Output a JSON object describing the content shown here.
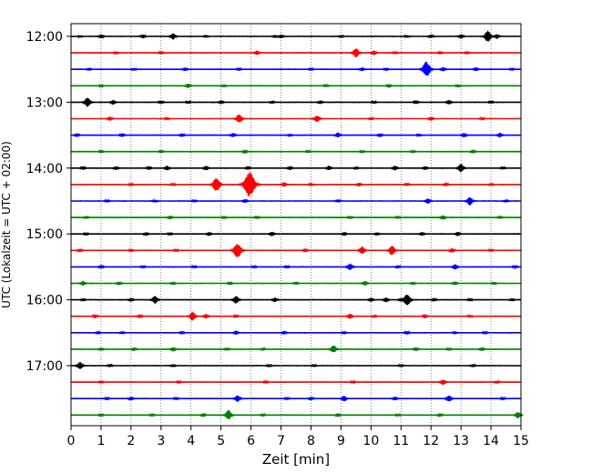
{
  "chart_data": {
    "type": "line",
    "title": "",
    "xlabel": "Zeit  [min]",
    "ylabel": "UTC (Lokalzeit = UTC + 02:00)",
    "xlim": [
      0,
      15
    ],
    "x_ticks": [
      "0",
      "1",
      "2",
      "3",
      "4",
      "5",
      "6",
      "7",
      "8",
      "9",
      "10",
      "11",
      "12",
      "13",
      "14",
      "15"
    ],
    "y_ticks": [
      "12:00",
      "13:00",
      "14:00",
      "15:00",
      "16:00",
      "17:00"
    ],
    "grid": "vertical dotted",
    "trace_interval_min": 15,
    "trace_colors": [
      "#000000",
      "#ff0000",
      "#0000ff",
      "#008000"
    ],
    "series": [
      {
        "start": "12:00",
        "events": [
          [
            0.3,
            0.12
          ],
          [
            1.0,
            0.3
          ],
          [
            2.4,
            0.25
          ],
          [
            3.4,
            0.4
          ],
          [
            4.5,
            0.2
          ],
          [
            6.8,
            0.2
          ],
          [
            7.0,
            0.25
          ],
          [
            9.0,
            0.2
          ],
          [
            11.2,
            0.2
          ],
          [
            12.0,
            0.25
          ],
          [
            13.0,
            0.3
          ],
          [
            13.9,
            0.7
          ],
          [
            14.2,
            0.3
          ]
        ]
      },
      {
        "start": "12:15",
        "events": [
          [
            1.5,
            0.2
          ],
          [
            3.0,
            0.2
          ],
          [
            6.2,
            0.3
          ],
          [
            9.5,
            0.6
          ],
          [
            10.1,
            0.3
          ],
          [
            10.8,
            0.2
          ],
          [
            12.3,
            0.2
          ],
          [
            13.2,
            0.2
          ]
        ]
      },
      {
        "start": "12:30",
        "events": [
          [
            0.6,
            0.2
          ],
          [
            2.1,
            0.2
          ],
          [
            3.8,
            0.25
          ],
          [
            5.6,
            0.2
          ],
          [
            8.0,
            0.2
          ],
          [
            9.7,
            0.25
          ],
          [
            10.5,
            0.2
          ],
          [
            11.85,
            0.95
          ],
          [
            12.4,
            0.3
          ],
          [
            13.5,
            0.25
          ],
          [
            14.7,
            0.2
          ]
        ]
      },
      {
        "start": "12:45",
        "events": [
          [
            1.0,
            0.15
          ],
          [
            3.9,
            0.3
          ],
          [
            5.1,
            0.2
          ],
          [
            8.5,
            0.2
          ],
          [
            10.6,
            0.25
          ],
          [
            12.9,
            0.2
          ]
        ]
      },
      {
        "start": "13:00",
        "events": [
          [
            0.55,
            0.6
          ],
          [
            1.4,
            0.3
          ],
          [
            3.0,
            0.25
          ],
          [
            3.9,
            0.2
          ],
          [
            5.0,
            0.25
          ],
          [
            6.7,
            0.2
          ],
          [
            8.3,
            0.25
          ],
          [
            10.1,
            0.2
          ],
          [
            11.5,
            0.25
          ],
          [
            12.6,
            0.3
          ],
          [
            14.0,
            0.2
          ]
        ]
      },
      {
        "start": "13:15",
        "events": [
          [
            1.3,
            0.3
          ],
          [
            3.2,
            0.2
          ],
          [
            5.6,
            0.55
          ],
          [
            8.2,
            0.45
          ],
          [
            10.0,
            0.2
          ],
          [
            12.0,
            0.25
          ],
          [
            13.7,
            0.2
          ]
        ]
      },
      {
        "start": "13:30",
        "events": [
          [
            0.2,
            0.25
          ],
          [
            1.7,
            0.25
          ],
          [
            3.7,
            0.25
          ],
          [
            5.4,
            0.3
          ],
          [
            7.3,
            0.2
          ],
          [
            8.9,
            0.35
          ],
          [
            10.3,
            0.25
          ],
          [
            11.6,
            0.2
          ],
          [
            13.1,
            0.3
          ],
          [
            14.3,
            0.3
          ]
        ]
      },
      {
        "start": "13:45",
        "events": [
          [
            1.0,
            0.2
          ],
          [
            3.0,
            0.2
          ],
          [
            5.8,
            0.25
          ],
          [
            7.9,
            0.2
          ],
          [
            9.7,
            0.2
          ],
          [
            11.4,
            0.2
          ],
          [
            13.4,
            0.25
          ]
        ]
      },
      {
        "start": "14:00",
        "events": [
          [
            0.4,
            0.25
          ],
          [
            1.5,
            0.25
          ],
          [
            2.6,
            0.25
          ],
          [
            3.2,
            0.3
          ],
          [
            4.5,
            0.3
          ],
          [
            5.9,
            0.25
          ],
          [
            7.3,
            0.25
          ],
          [
            8.6,
            0.3
          ],
          [
            9.5,
            0.2
          ],
          [
            10.8,
            0.3
          ],
          [
            11.8,
            0.25
          ],
          [
            13.0,
            0.55
          ],
          [
            14.4,
            0.2
          ]
        ]
      },
      {
        "start": "14:15",
        "events": [
          [
            2.0,
            0.2
          ],
          [
            3.4,
            0.2
          ],
          [
            4.85,
            0.85
          ],
          [
            5.95,
            1.55
          ],
          [
            7.1,
            0.3
          ],
          [
            8.0,
            0.2
          ],
          [
            9.6,
            0.25
          ],
          [
            11.2,
            0.2
          ],
          [
            12.5,
            0.25
          ],
          [
            14.0,
            0.2
          ]
        ]
      },
      {
        "start": "14:30",
        "events": [
          [
            1.2,
            0.2
          ],
          [
            2.8,
            0.2
          ],
          [
            4.1,
            0.2
          ],
          [
            5.8,
            0.25
          ],
          [
            8.9,
            0.2
          ],
          [
            11.9,
            0.35
          ],
          [
            13.3,
            0.55
          ],
          [
            14.5,
            0.2
          ]
        ]
      },
      {
        "start": "14:45",
        "events": [
          [
            0.5,
            0.2
          ],
          [
            3.3,
            0.25
          ],
          [
            5.1,
            0.2
          ],
          [
            6.2,
            0.2
          ],
          [
            9.3,
            0.2
          ],
          [
            10.9,
            0.2
          ],
          [
            12.4,
            0.3
          ],
          [
            14.3,
            0.2
          ]
        ]
      },
      {
        "start": "15:00",
        "events": [
          [
            0.5,
            0.2
          ],
          [
            2.5,
            0.25
          ],
          [
            3.3,
            0.2
          ],
          [
            4.6,
            0.25
          ],
          [
            6.7,
            0.3
          ],
          [
            9.1,
            0.25
          ],
          [
            10.2,
            0.2
          ],
          [
            11.7,
            0.25
          ],
          [
            12.9,
            0.3
          ]
        ]
      },
      {
        "start": "15:15",
        "events": [
          [
            0.3,
            0.25
          ],
          [
            2.0,
            0.2
          ],
          [
            3.5,
            0.2
          ],
          [
            5.55,
            0.95
          ],
          [
            7.8,
            0.25
          ],
          [
            9.7,
            0.5
          ],
          [
            10.7,
            0.6
          ],
          [
            12.7,
            0.3
          ],
          [
            14.0,
            0.2
          ]
        ]
      },
      {
        "start": "15:30",
        "events": [
          [
            1.0,
            0.25
          ],
          [
            2.4,
            0.2
          ],
          [
            4.1,
            0.2
          ],
          [
            6.1,
            0.2
          ],
          [
            7.2,
            0.2
          ],
          [
            9.3,
            0.45
          ],
          [
            10.9,
            0.25
          ],
          [
            12.8,
            0.35
          ],
          [
            14.8,
            0.25
          ]
        ]
      },
      {
        "start": "15:45",
        "events": [
          [
            0.4,
            0.3
          ],
          [
            1.6,
            0.25
          ],
          [
            3.4,
            0.2
          ],
          [
            5.3,
            0.2
          ],
          [
            7.5,
            0.2
          ],
          [
            9.8,
            0.3
          ],
          [
            11.4,
            0.2
          ],
          [
            12.8,
            0.25
          ],
          [
            14.1,
            0.2
          ]
        ]
      },
      {
        "start": "16:00",
        "events": [
          [
            0.4,
            0.2
          ],
          [
            2.0,
            0.25
          ],
          [
            2.8,
            0.5
          ],
          [
            5.5,
            0.5
          ],
          [
            6.8,
            0.3
          ],
          [
            10.0,
            0.25
          ],
          [
            10.5,
            0.3
          ],
          [
            11.0,
            0.25
          ],
          [
            11.2,
            0.75
          ],
          [
            12.1,
            0.25
          ],
          [
            13.3,
            0.2
          ],
          [
            14.7,
            0.2
          ]
        ]
      },
      {
        "start": "16:15",
        "events": [
          [
            0.8,
            0.25
          ],
          [
            2.3,
            0.25
          ],
          [
            4.05,
            0.55
          ],
          [
            4.5,
            0.3
          ],
          [
            5.5,
            0.2
          ],
          [
            9.3,
            0.35
          ],
          [
            10.1,
            0.2
          ],
          [
            11.8,
            0.25
          ],
          [
            13.3,
            0.2
          ]
        ]
      },
      {
        "start": "16:30",
        "events": [
          [
            0.9,
            0.2
          ],
          [
            1.7,
            0.2
          ],
          [
            3.7,
            0.2
          ],
          [
            5.5,
            0.25
          ],
          [
            7.1,
            0.25
          ],
          [
            9.1,
            0.2
          ],
          [
            11.2,
            0.25
          ],
          [
            12.8,
            0.2
          ],
          [
            13.8,
            0.2
          ]
        ]
      },
      {
        "start": "16:45",
        "events": [
          [
            1.0,
            0.2
          ],
          [
            2.1,
            0.25
          ],
          [
            3.4,
            0.3
          ],
          [
            5.2,
            0.2
          ],
          [
            6.4,
            0.2
          ],
          [
            8.75,
            0.5
          ],
          [
            11.5,
            0.25
          ],
          [
            12.6,
            0.2
          ],
          [
            13.7,
            0.25
          ]
        ]
      },
      {
        "start": "17:00",
        "events": [
          [
            0.3,
            0.45
          ],
          [
            1.3,
            0.2
          ],
          [
            3.4,
            0.2
          ],
          [
            6.6,
            0.2
          ],
          [
            8.1,
            0.2
          ],
          [
            11.0,
            0.2
          ],
          [
            13.4,
            0.2
          ]
        ]
      },
      {
        "start": "17:15",
        "events": [
          [
            1.0,
            0.2
          ],
          [
            3.6,
            0.2
          ],
          [
            6.5,
            0.2
          ],
          [
            9.4,
            0.2
          ],
          [
            12.4,
            0.35
          ],
          [
            14.2,
            0.2
          ]
        ]
      },
      {
        "start": "17:30",
        "events": [
          [
            1.2,
            0.2
          ],
          [
            2.0,
            0.25
          ],
          [
            3.5,
            0.2
          ],
          [
            5.55,
            0.45
          ],
          [
            7.2,
            0.2
          ],
          [
            8.0,
            0.25
          ],
          [
            9.1,
            0.35
          ],
          [
            10.8,
            0.25
          ],
          [
            12.6,
            0.45
          ],
          [
            14.4,
            0.2
          ]
        ]
      },
      {
        "start": "17:45",
        "events": [
          [
            1.0,
            0.2
          ],
          [
            2.7,
            0.2
          ],
          [
            4.4,
            0.25
          ],
          [
            5.25,
            0.6
          ],
          [
            6.4,
            0.2
          ],
          [
            8.9,
            0.25
          ],
          [
            10.9,
            0.2
          ],
          [
            12.3,
            0.25
          ],
          [
            14.9,
            0.4
          ]
        ]
      }
    ]
  }
}
